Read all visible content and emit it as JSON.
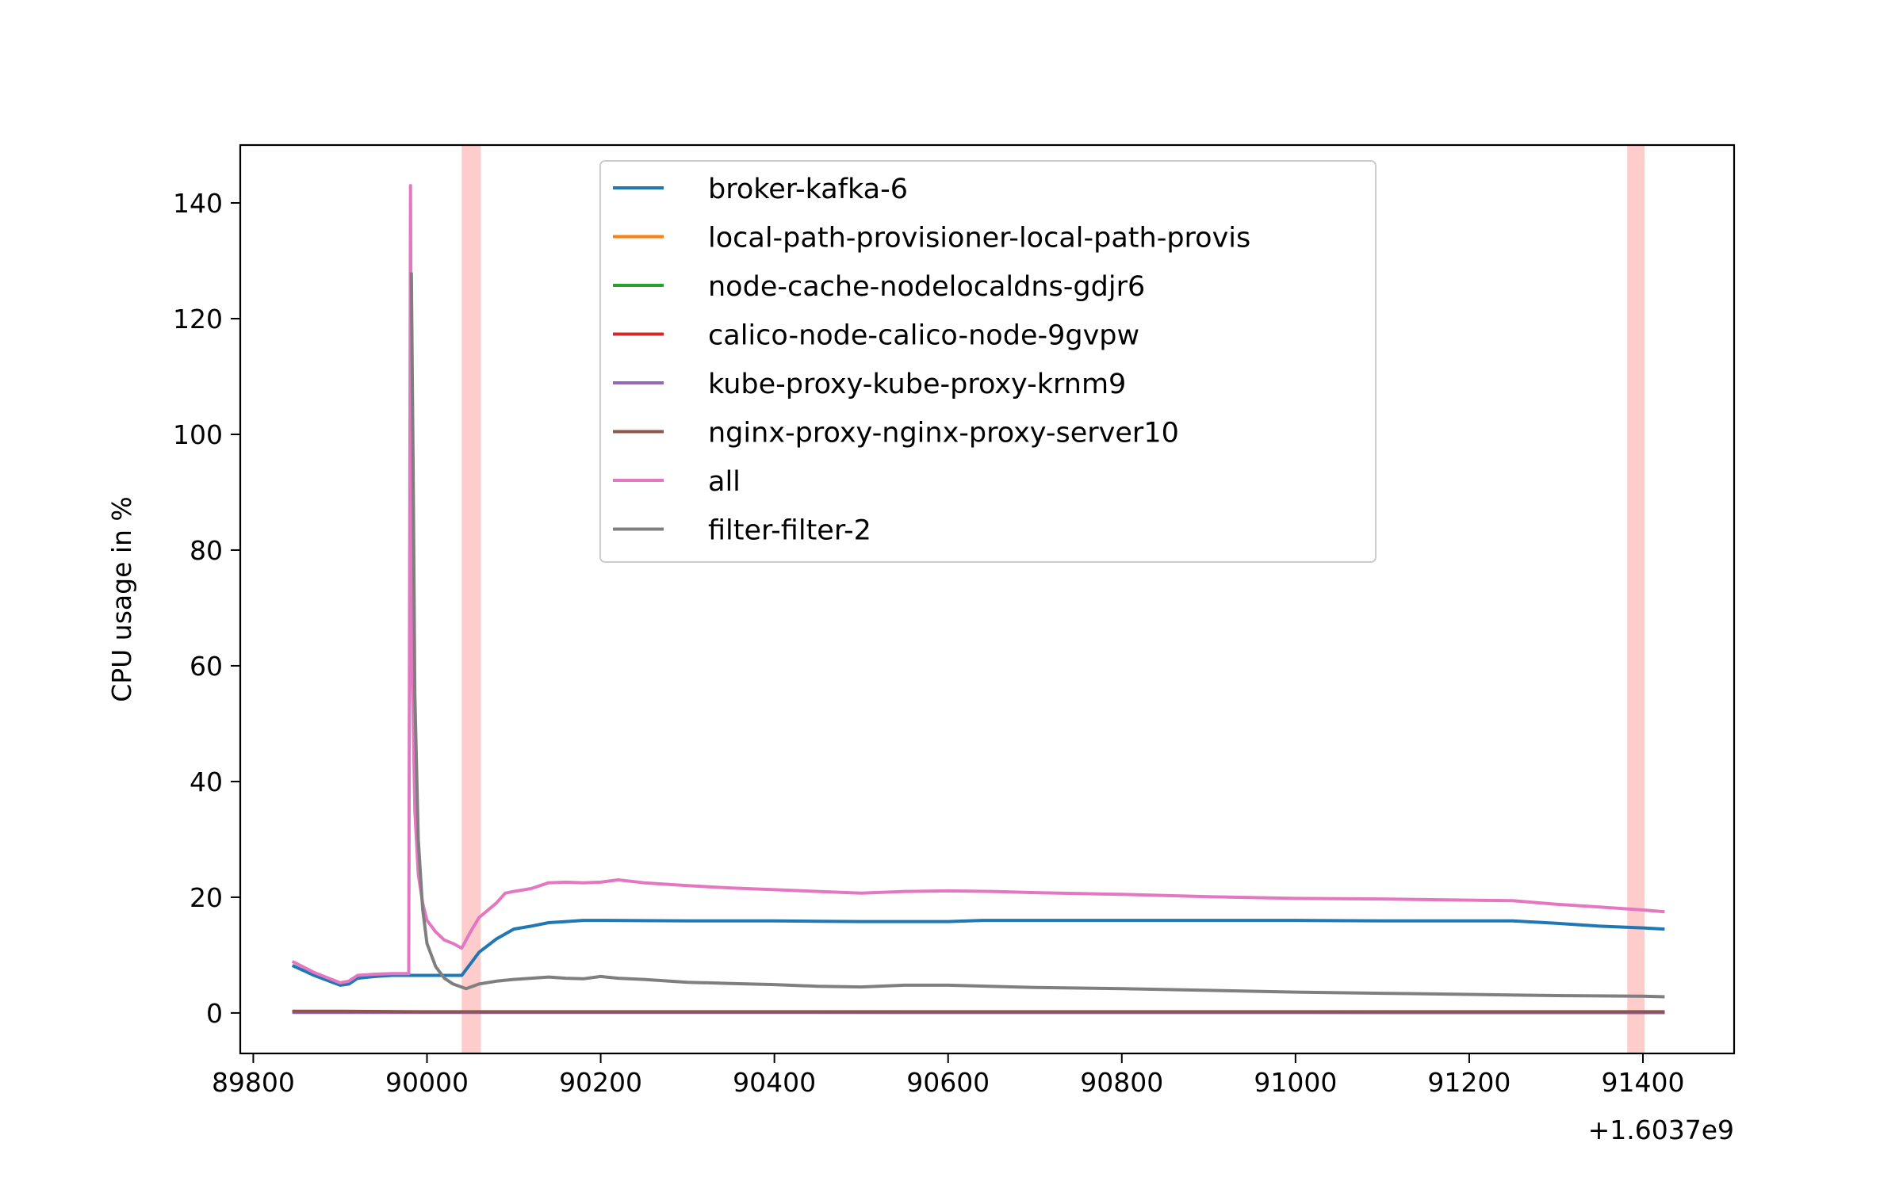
{
  "chart_data": {
    "type": "line",
    "title": "",
    "xlabel": "",
    "ylabel": "CPU usage in %",
    "x_offset_label": "+1.6037e9",
    "xlim": [
      89785,
      91505
    ],
    "ylim": [
      -7,
      150
    ],
    "xticks": [
      89800,
      90000,
      90200,
      90400,
      90600,
      90800,
      91000,
      91200,
      91400
    ],
    "yticks": [
      0,
      20,
      40,
      60,
      80,
      100,
      120,
      140
    ],
    "grid": false,
    "legend_position": "top-center",
    "highlight_bands": [
      {
        "x0": 90040,
        "x1": 90062,
        "color": "#ffcccc"
      },
      {
        "x0": 91382,
        "x1": 91402,
        "color": "#ffcccc"
      }
    ],
    "series": [
      {
        "name": "broker-kafka-6",
        "color": "#1f77b4",
        "points": [
          [
            89845,
            8.2
          ],
          [
            89870,
            6.5
          ],
          [
            89900,
            4.8
          ],
          [
            89910,
            5.0
          ],
          [
            89920,
            6.0
          ],
          [
            89940,
            6.3
          ],
          [
            89960,
            6.5
          ],
          [
            89980,
            6.5
          ],
          [
            90000,
            6.5
          ],
          [
            90020,
            6.5
          ],
          [
            90040,
            6.5
          ],
          [
            90050,
            8.5
          ],
          [
            90060,
            10.5
          ],
          [
            90080,
            12.8
          ],
          [
            90100,
            14.5
          ],
          [
            90120,
            15.0
          ],
          [
            90140,
            15.6
          ],
          [
            90160,
            15.8
          ],
          [
            90180,
            16.0
          ],
          [
            90200,
            16.0
          ],
          [
            90300,
            15.9
          ],
          [
            90400,
            15.9
          ],
          [
            90500,
            15.8
          ],
          [
            90600,
            15.8
          ],
          [
            90640,
            16.0
          ],
          [
            90700,
            16.0
          ],
          [
            90800,
            16.0
          ],
          [
            90900,
            16.0
          ],
          [
            91000,
            16.0
          ],
          [
            91100,
            15.9
          ],
          [
            91200,
            15.9
          ],
          [
            91250,
            15.9
          ],
          [
            91300,
            15.5
          ],
          [
            91350,
            15.0
          ],
          [
            91400,
            14.7
          ],
          [
            91425,
            14.5
          ]
        ]
      },
      {
        "name": "local-path-provisioner-local-path-provis",
        "color": "#ff7f0e",
        "points": [
          [
            89845,
            0.2
          ],
          [
            91425,
            0.1
          ]
        ]
      },
      {
        "name": "node-cache-nodelocaldns-gdjr6",
        "color": "#2ca02c",
        "points": [
          [
            89845,
            0.2
          ],
          [
            91425,
            0.1
          ]
        ]
      },
      {
        "name": "calico-node-calico-node-9gvpw",
        "color": "#d62728",
        "points": [
          [
            89845,
            0.2
          ],
          [
            91425,
            0.1
          ]
        ]
      },
      {
        "name": "kube-proxy-kube-proxy-krnm9",
        "color": "#9467bd",
        "points": [
          [
            89845,
            0.1
          ],
          [
            91425,
            0.05
          ]
        ]
      },
      {
        "name": "nginx-proxy-nginx-proxy-server10",
        "color": "#8c564b",
        "points": [
          [
            89845,
            0.3
          ],
          [
            89900,
            0.3
          ],
          [
            90000,
            0.2
          ],
          [
            91425,
            0.2
          ]
        ]
      },
      {
        "name": "all",
        "color": "#e377c2",
        "points": [
          [
            89845,
            8.9
          ],
          [
            89870,
            7.0
          ],
          [
            89900,
            5.2
          ],
          [
            89910,
            5.5
          ],
          [
            89920,
            6.5
          ],
          [
            89940,
            6.7
          ],
          [
            89960,
            6.8
          ],
          [
            89979,
            6.8
          ],
          [
            89981,
            143
          ],
          [
            89983,
            60
          ],
          [
            89986,
            35
          ],
          [
            89990,
            24
          ],
          [
            89995,
            19
          ],
          [
            90000,
            16
          ],
          [
            90010,
            14
          ],
          [
            90020,
            12.6
          ],
          [
            90030,
            12.0
          ],
          [
            90040,
            11.2
          ],
          [
            90050,
            14.0
          ],
          [
            90060,
            16.5
          ],
          [
            90080,
            19.0
          ],
          [
            90090,
            20.7
          ],
          [
            90100,
            21.0
          ],
          [
            90120,
            21.5
          ],
          [
            90140,
            22.5
          ],
          [
            90160,
            22.6
          ],
          [
            90180,
            22.5
          ],
          [
            90200,
            22.6
          ],
          [
            90220,
            23.0
          ],
          [
            90250,
            22.5
          ],
          [
            90300,
            22.0
          ],
          [
            90350,
            21.6
          ],
          [
            90400,
            21.3
          ],
          [
            90450,
            21.0
          ],
          [
            90500,
            20.7
          ],
          [
            90550,
            21.0
          ],
          [
            90600,
            21.1
          ],
          [
            90650,
            21.0
          ],
          [
            90700,
            20.8
          ],
          [
            90800,
            20.5
          ],
          [
            90900,
            20.1
          ],
          [
            91000,
            19.8
          ],
          [
            91100,
            19.7
          ],
          [
            91200,
            19.5
          ],
          [
            91250,
            19.4
          ],
          [
            91300,
            18.8
          ],
          [
            91350,
            18.3
          ],
          [
            91400,
            17.8
          ],
          [
            91425,
            17.5
          ]
        ]
      },
      {
        "name": "filter-filter-2",
        "color": "#7f7f7f",
        "points": [
          [
            89982,
            128
          ],
          [
            89984,
            95
          ],
          [
            89986,
            55
          ],
          [
            89990,
            30
          ],
          [
            89995,
            18
          ],
          [
            90000,
            12
          ],
          [
            90010,
            8
          ],
          [
            90020,
            6
          ],
          [
            90030,
            5
          ],
          [
            90045,
            4.2
          ],
          [
            90060,
            5.0
          ],
          [
            90080,
            5.5
          ],
          [
            90100,
            5.8
          ],
          [
            90120,
            6.0
          ],
          [
            90140,
            6.2
          ],
          [
            90160,
            6.0
          ],
          [
            90180,
            5.9
          ],
          [
            90200,
            6.3
          ],
          [
            90220,
            6.0
          ],
          [
            90250,
            5.8
          ],
          [
            90300,
            5.3
          ],
          [
            90350,
            5.1
          ],
          [
            90400,
            4.9
          ],
          [
            90450,
            4.6
          ],
          [
            90500,
            4.5
          ],
          [
            90550,
            4.8
          ],
          [
            90600,
            4.8
          ],
          [
            90700,
            4.4
          ],
          [
            90800,
            4.2
          ],
          [
            90900,
            3.9
          ],
          [
            91000,
            3.6
          ],
          [
            91100,
            3.4
          ],
          [
            91200,
            3.2
          ],
          [
            91300,
            3.0
          ],
          [
            91400,
            2.9
          ],
          [
            91425,
            2.8
          ]
        ]
      }
    ]
  }
}
